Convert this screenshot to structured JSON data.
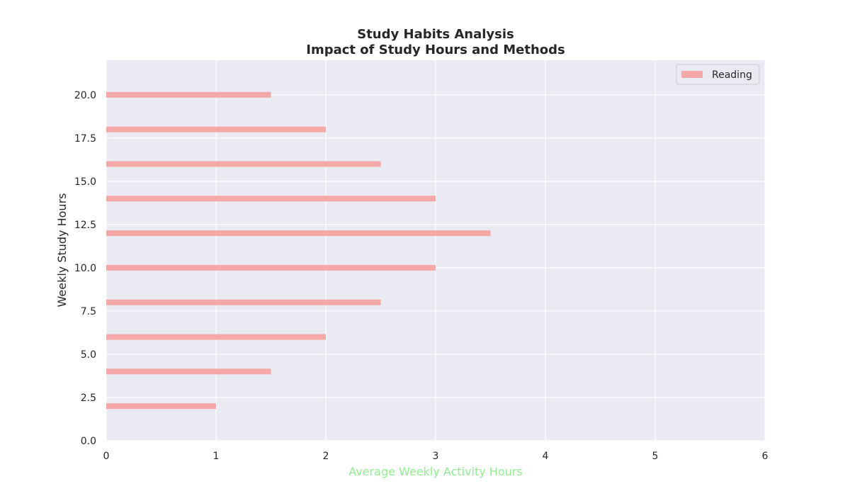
{
  "chart_data": {
    "type": "bar",
    "orientation": "horizontal",
    "title": "Study Habits Analysis",
    "subtitle": "Impact of Study Hours and Methods",
    "xlabel": "Average Weekly Activity Hours",
    "ylabel": "Weekly Study Hours",
    "xlim": [
      0,
      6
    ],
    "ylim": [
      0,
      22
    ],
    "x_ticks": [
      "0",
      "1",
      "2",
      "3",
      "4",
      "5",
      "6"
    ],
    "y_ticks": [
      "0.0",
      "2.5",
      "5.0",
      "7.5",
      "10.0",
      "12.5",
      "15.0",
      "17.5",
      "20.0"
    ],
    "grid": true,
    "legend_position": "top-right",
    "series": [
      {
        "name": "Reading",
        "color": "#f4a9a8",
        "y": [
          2,
          4,
          6,
          8,
          10,
          12,
          14,
          16,
          18,
          20
        ],
        "values": [
          1,
          1.5,
          2,
          2.5,
          3,
          3.5,
          3,
          2.5,
          2,
          1.5
        ]
      }
    ],
    "colors": {
      "plot_background": "#eaeaf2",
      "grid": "#ffffff",
      "xlabel": "#90ee90"
    }
  }
}
